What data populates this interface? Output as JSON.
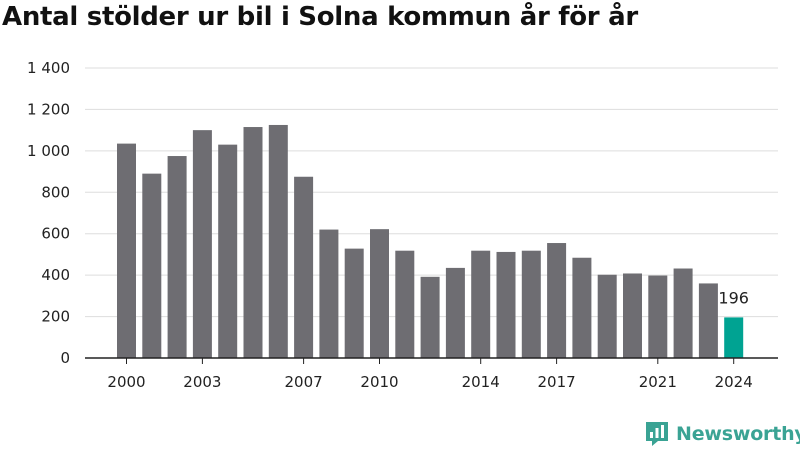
{
  "chart_data": {
    "type": "bar",
    "title": "Antal stölder ur bil i Solna kommun år för år",
    "xlabel": "",
    "ylabel": "",
    "ylim": [
      0,
      1400
    ],
    "yticks": [
      0,
      200,
      400,
      600,
      800,
      1000,
      1200,
      1400
    ],
    "ytick_labels": [
      "0",
      "200",
      "400",
      "600",
      "800",
      "1 000",
      "1 200",
      "1 400"
    ],
    "xtick_labels": [
      "2000",
      "2003",
      "2007",
      "2010",
      "2014",
      "2017",
      "2021",
      "2024"
    ],
    "grid": true,
    "categories": [
      "2000",
      "2001",
      "2002",
      "2003",
      "2004",
      "2005",
      "2006",
      "2007",
      "2008",
      "2009",
      "2010",
      "2011",
      "2012",
      "2013",
      "2014",
      "2015",
      "2016",
      "2017",
      "2018",
      "2019",
      "2020",
      "2021",
      "2022",
      "2023",
      "2024"
    ],
    "values": [
      1035,
      890,
      975,
      1100,
      1030,
      1115,
      1125,
      875,
      620,
      528,
      622,
      518,
      392,
      435,
      518,
      512,
      518,
      555,
      484,
      402,
      408,
      398,
      432,
      360,
      196
    ],
    "highlight_index": 24,
    "data_labels": [
      {
        "index": 24,
        "text": "196"
      }
    ],
    "colors": {
      "bar": "#6e6d72",
      "highlight": "#00a392",
      "grid": "#dddddd",
      "axis": "#222222"
    }
  },
  "brand": {
    "name": "Newsworthy",
    "icon": "newsworthy-logo-icon"
  }
}
